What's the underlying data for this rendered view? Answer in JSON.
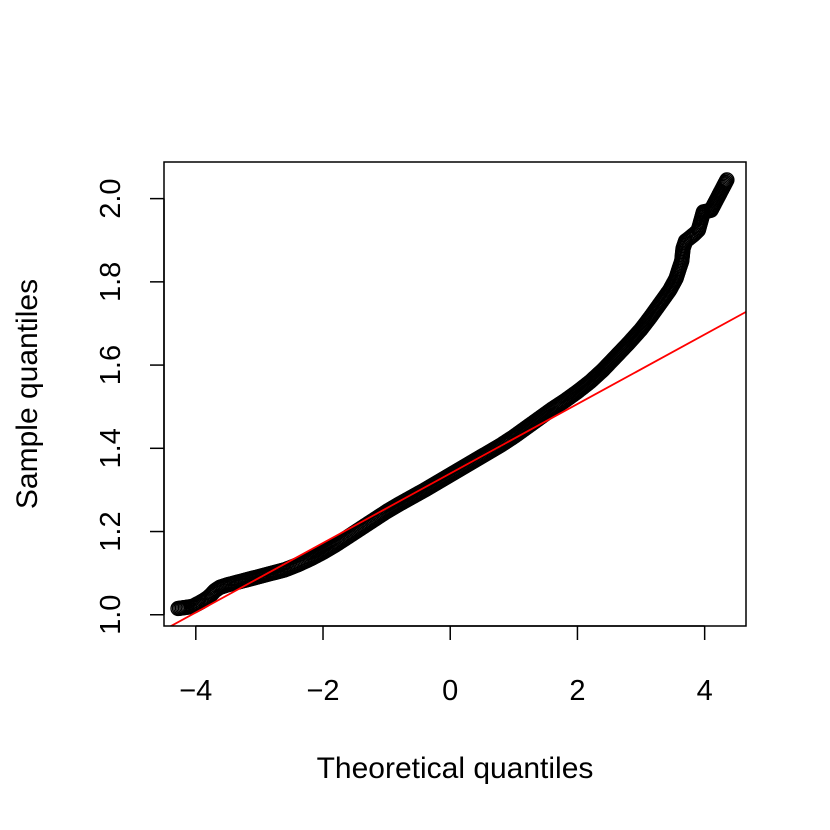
{
  "chart_data": {
    "type": "scatter",
    "title": "",
    "xlabel": "Theoretical quantiles",
    "ylabel": "Sample quantiles",
    "xlim": [
      -4.5,
      4.65
    ],
    "ylim": [
      0.973,
      2.088
    ],
    "x_ticks": [
      -4,
      -2,
      0,
      2,
      4
    ],
    "y_ticks": [
      1.0,
      1.2,
      1.4,
      1.6,
      1.8,
      2.0
    ],
    "x_tick_labels": [
      "−4",
      "−2",
      "0",
      "2",
      "4"
    ],
    "y_tick_labels": [
      "1.0",
      "1.2",
      "1.4",
      "1.6",
      "1.8",
      "2.0"
    ],
    "grid": false,
    "legend": "none",
    "series": [
      {
        "marker": "open-circle",
        "color": "#000000",
        "points": [
          [
            -4.28,
            1.015
          ],
          [
            -4.05,
            1.02
          ],
          [
            -3.95,
            1.028
          ],
          [
            -3.88,
            1.034
          ],
          [
            -3.82,
            1.04
          ],
          [
            -3.76,
            1.048
          ],
          [
            -3.7,
            1.058
          ],
          [
            -3.62,
            1.066
          ],
          [
            -3.5,
            1.072
          ],
          [
            -3.35,
            1.078
          ],
          [
            -3.2,
            1.084
          ],
          [
            -3.0,
            1.092
          ],
          [
            -2.8,
            1.1
          ],
          [
            -2.6,
            1.108
          ],
          [
            -2.4,
            1.12
          ],
          [
            -2.2,
            1.134
          ],
          [
            -2.0,
            1.15
          ],
          [
            -1.8,
            1.168
          ],
          [
            -1.6,
            1.188
          ],
          [
            -1.4,
            1.208
          ],
          [
            -1.2,
            1.228
          ],
          [
            -1.0,
            1.248
          ],
          [
            -0.8,
            1.266
          ],
          [
            -0.6,
            1.283
          ],
          [
            -0.4,
            1.3
          ],
          [
            -0.2,
            1.318
          ],
          [
            0.0,
            1.336
          ],
          [
            0.2,
            1.354
          ],
          [
            0.4,
            1.372
          ],
          [
            0.6,
            1.39
          ],
          [
            0.8,
            1.408
          ],
          [
            1.0,
            1.428
          ],
          [
            1.2,
            1.45
          ],
          [
            1.4,
            1.472
          ],
          [
            1.6,
            1.494
          ],
          [
            1.8,
            1.514
          ],
          [
            2.0,
            1.536
          ],
          [
            2.2,
            1.56
          ],
          [
            2.4,
            1.588
          ],
          [
            2.6,
            1.62
          ],
          [
            2.8,
            1.652
          ],
          [
            3.0,
            1.686
          ],
          [
            3.15,
            1.716
          ],
          [
            3.3,
            1.748
          ],
          [
            3.45,
            1.78
          ],
          [
            3.55,
            1.808
          ],
          [
            3.6,
            1.832
          ],
          [
            3.64,
            1.85
          ],
          [
            3.66,
            1.88
          ],
          [
            3.7,
            1.898
          ],
          [
            3.76,
            1.905
          ],
          [
            3.84,
            1.915
          ],
          [
            3.9,
            1.924
          ],
          [
            3.98,
            1.968
          ],
          [
            4.1,
            1.972
          ],
          [
            4.35,
            2.045
          ]
        ]
      }
    ],
    "reference_line": {
      "color": "#ff0000",
      "slope": 0.0835,
      "intercept": 1.3395
    }
  }
}
